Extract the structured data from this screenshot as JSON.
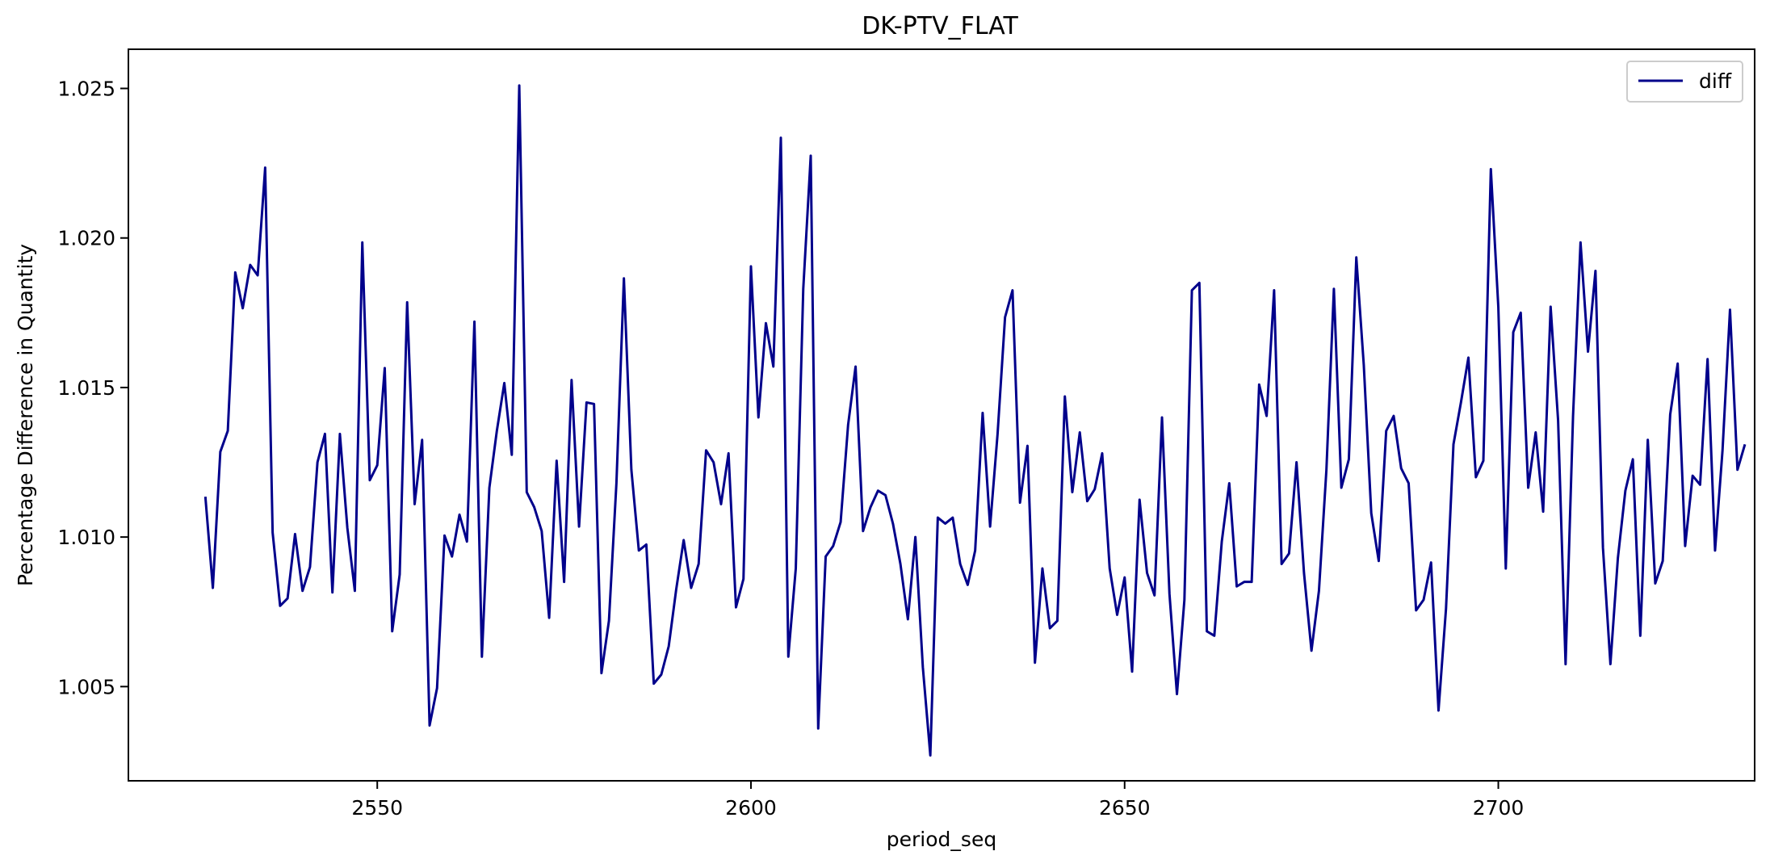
{
  "chart_data": {
    "type": "line",
    "title": "DK-PTV_FLAT",
    "xlabel": "period_seq",
    "ylabel": "Percentage Difference in Quantity",
    "xlim": [
      2516.7,
      2734.3
    ],
    "ylim": [
      1.00185,
      1.02631
    ],
    "xticks": [
      2550,
      2600,
      2650,
      2700
    ],
    "xtick_labels": [
      "2550",
      "2600",
      "2650",
      "2700"
    ],
    "yticks": [
      1.005,
      1.01,
      1.015,
      1.02,
      1.025
    ],
    "ytick_labels": [
      "1.005",
      "1.010",
      "1.015",
      "1.020",
      "1.025"
    ],
    "grid": false,
    "legend_position": "top-right",
    "series": [
      {
        "name": "diff",
        "color": "#00008b",
        "x_start": 2527,
        "x_step": 1,
        "values": [
          1.01135,
          1.0083,
          1.01285,
          1.01355,
          1.01885,
          1.01765,
          1.0191,
          1.01875,
          1.02235,
          1.01015,
          1.0077,
          1.00795,
          1.0101,
          1.0082,
          1.009,
          1.0125,
          1.01345,
          1.00815,
          1.01345,
          1.0103,
          1.0082,
          1.01985,
          1.0119,
          1.0124,
          1.01565,
          1.00685,
          1.00875,
          1.01785,
          1.0111,
          1.01325,
          1.0037,
          1.00495,
          1.01005,
          1.00935,
          1.01075,
          1.00985,
          1.0172,
          1.006,
          1.01165,
          1.01355,
          1.01515,
          1.01275,
          1.0251,
          1.0115,
          1.011,
          1.0102,
          1.0073,
          1.01255,
          1.0085,
          1.01525,
          1.01035,
          1.0145,
          1.01445,
          1.00545,
          1.0072,
          1.0118,
          1.01865,
          1.01225,
          1.00955,
          1.00975,
          1.0051,
          1.0054,
          1.00635,
          1.00825,
          1.0099,
          1.0083,
          1.0091,
          1.0129,
          1.0125,
          1.0111,
          1.0128,
          1.00765,
          1.0086,
          1.01905,
          1.014,
          1.01715,
          1.0157,
          1.02335,
          1.006,
          1.00895,
          1.0183,
          1.02275,
          1.0036,
          1.00935,
          1.0097,
          1.0105,
          1.01375,
          1.0157,
          1.0102,
          1.011,
          1.01155,
          1.0114,
          1.01045,
          1.0091,
          1.00725,
          1.01,
          1.00565,
          1.0027,
          1.01065,
          1.01045,
          1.01065,
          1.0091,
          1.0084,
          1.00955,
          1.01415,
          1.01035,
          1.01345,
          1.01735,
          1.01825,
          1.01115,
          1.01305,
          1.0058,
          1.00895,
          1.00695,
          1.0072,
          1.0147,
          1.0115,
          1.0135,
          1.0112,
          1.0116,
          1.0128,
          1.00895,
          1.0074,
          1.00865,
          1.0055,
          1.01125,
          1.0088,
          1.00805,
          1.014,
          1.0081,
          1.00475,
          1.0079,
          1.01825,
          1.0185,
          1.00685,
          1.0067,
          1.00985,
          1.0118,
          1.00835,
          1.0085,
          1.0085,
          1.0151,
          1.01405,
          1.01825,
          1.0091,
          1.00945,
          1.0125,
          1.0088,
          1.0062,
          1.0082,
          1.01225,
          1.0183,
          1.01165,
          1.0126,
          1.01935,
          1.01575,
          1.0108,
          1.0092,
          1.01355,
          1.01405,
          1.0123,
          1.0118,
          1.00755,
          1.0079,
          1.00915,
          1.0042,
          1.0076,
          1.0131,
          1.0145,
          1.016,
          1.012,
          1.01255,
          1.0223,
          1.0177,
          1.00895,
          1.01685,
          1.0175,
          1.01165,
          1.0135,
          1.01085,
          1.0177,
          1.0139,
          1.00575,
          1.01405,
          1.01985,
          1.0162,
          1.0189,
          1.00965,
          1.00575,
          1.0093,
          1.01155,
          1.0126,
          1.0067,
          1.01325,
          1.00845,
          1.0092,
          1.0141,
          1.0158,
          1.0097,
          1.01205,
          1.01175,
          1.01595,
          1.00955,
          1.0129,
          1.0176,
          1.01225,
          1.0131
        ]
      }
    ]
  }
}
